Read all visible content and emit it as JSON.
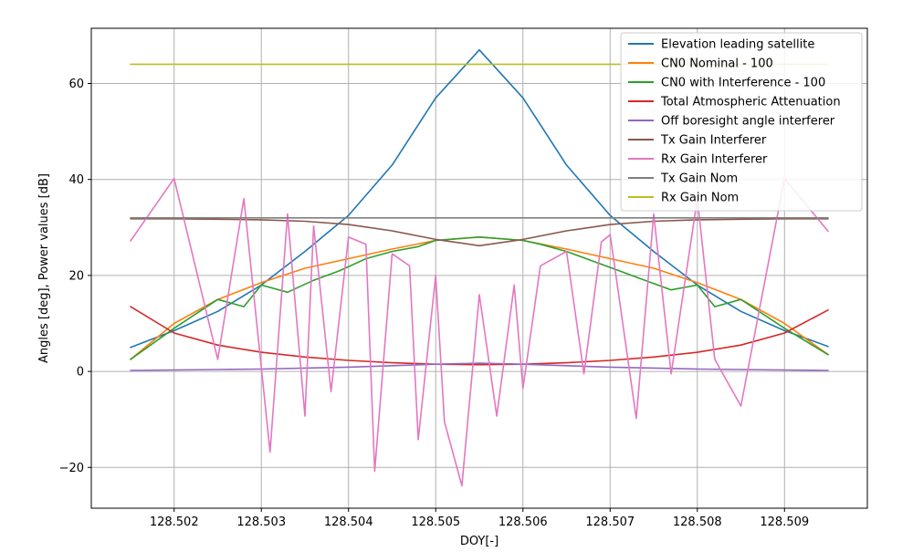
{
  "chart_data": {
    "type": "line",
    "xlabel": "DOY[-]",
    "ylabel": "Angles [deg], Power values [dB]",
    "xlim": [
      128.50105,
      128.50995
    ],
    "ylim": [
      -28.5,
      71.5
    ],
    "grid": true,
    "legend_position": "top-right",
    "x_ticks": [
      128.502,
      128.503,
      128.504,
      128.505,
      128.506,
      128.507,
      128.508,
      128.509
    ],
    "x_tick_labels": [
      "128.502",
      "128.503",
      "128.504",
      "128.505",
      "128.506",
      "128.507",
      "128.508",
      "128.509"
    ],
    "y_ticks": [
      -20,
      0,
      20,
      40,
      60
    ],
    "y_tick_labels": [
      "−20",
      "0",
      "20",
      "40",
      "60"
    ],
    "series": [
      {
        "name": "Elevation leading satellite",
        "color": "#1f77b4",
        "x": [
          128.5015,
          128.502,
          128.5025,
          128.503,
          128.5035,
          128.504,
          128.5045,
          128.505,
          128.5055,
          128.506,
          128.5065,
          128.507,
          128.5075,
          128.508,
          128.5085,
          128.509,
          128.5095
        ],
        "y": [
          5.0,
          8.5,
          12.5,
          18.0,
          25.0,
          32.5,
          43.0,
          57.0,
          67.0,
          57.0,
          43.0,
          32.5,
          25.0,
          18.0,
          12.5,
          8.5,
          5.2
        ]
      },
      {
        "name": "CN0 Nominal - 100",
        "color": "#ff7f0e",
        "x": [
          128.5015,
          128.502,
          128.5025,
          128.503,
          128.5035,
          128.504,
          128.5045,
          128.505,
          128.5055,
          128.506,
          128.5065,
          128.507,
          128.5075,
          128.508,
          128.5085,
          128.509,
          128.5095
        ],
        "y": [
          2.5,
          10.0,
          15.0,
          18.5,
          21.5,
          23.5,
          25.5,
          27.3,
          28.0,
          27.3,
          25.5,
          23.5,
          21.5,
          18.5,
          15.0,
          10.0,
          3.5
        ]
      },
      {
        "name": "CN0 with Interference - 100",
        "color": "#2ca02c",
        "x": [
          128.5015,
          128.502,
          128.5025,
          128.5028,
          128.503,
          128.5033,
          128.5036,
          128.5039,
          128.5042,
          128.5045,
          128.5048,
          128.505,
          128.5055,
          128.506,
          128.5062,
          128.5065,
          128.5068,
          128.5071,
          128.5074,
          128.5077,
          128.508,
          128.5082,
          128.5085,
          128.509,
          128.5095
        ],
        "y": [
          2.5,
          9.0,
          15.0,
          13.5,
          18.0,
          16.5,
          19.0,
          21.0,
          23.5,
          25.0,
          26.0,
          27.3,
          28.0,
          27.3,
          26.5,
          25.0,
          23.0,
          21.0,
          19.0,
          17.0,
          18.0,
          13.5,
          15.0,
          9.0,
          3.5
        ]
      },
      {
        "name": "Total Atmospheric Attenuation",
        "color": "#d62728",
        "x": [
          128.5015,
          128.502,
          128.5025,
          128.503,
          128.5035,
          128.504,
          128.5045,
          128.505,
          128.5055,
          128.506,
          128.5065,
          128.507,
          128.5075,
          128.508,
          128.5085,
          128.509,
          128.5095
        ],
        "y": [
          13.5,
          8.0,
          5.5,
          4.0,
          3.0,
          2.3,
          1.8,
          1.5,
          1.4,
          1.5,
          1.8,
          2.3,
          3.0,
          4.0,
          5.5,
          8.0,
          12.8
        ]
      },
      {
        "name": "Off boresight angle interferer",
        "color": "#9467bd",
        "x": [
          128.5015,
          128.502,
          128.5025,
          128.503,
          128.5035,
          128.504,
          128.5045,
          128.505,
          128.5055,
          128.506,
          128.5065,
          128.507,
          128.5075,
          128.508,
          128.5085,
          128.509,
          128.5095
        ],
        "y": [
          0.2,
          0.3,
          0.4,
          0.5,
          0.7,
          0.9,
          1.2,
          1.5,
          1.7,
          1.5,
          1.2,
          0.9,
          0.7,
          0.5,
          0.4,
          0.3,
          0.2
        ]
      },
      {
        "name": "Tx Gain Interferer",
        "color": "#8c564b",
        "x": [
          128.5015,
          128.502,
          128.5025,
          128.503,
          128.5035,
          128.504,
          128.5045,
          128.505,
          128.5055,
          128.506,
          128.5065,
          128.507,
          128.5075,
          128.508,
          128.5085,
          128.509,
          128.5095
        ],
        "y": [
          31.8,
          31.8,
          31.7,
          31.6,
          31.3,
          30.6,
          29.3,
          27.5,
          26.2,
          27.5,
          29.3,
          30.6,
          31.3,
          31.6,
          31.7,
          31.8,
          31.8
        ]
      },
      {
        "name": "Rx Gain Interferer",
        "color": "#e377c2",
        "x": [
          128.5015,
          128.502,
          128.5025,
          128.5028,
          128.5031,
          128.5033,
          128.5035,
          128.5036,
          128.5038,
          128.504,
          128.5042,
          128.5043,
          128.5045,
          128.5047,
          128.5048,
          128.505,
          128.5051,
          128.5053,
          128.5055,
          128.5057,
          128.5059,
          128.506,
          128.5062,
          128.5065,
          128.5067,
          128.5069,
          128.507,
          128.5073,
          128.5075,
          128.5077,
          128.508,
          128.5082,
          128.5085,
          128.509,
          128.5095
        ],
        "y": [
          27.2,
          40.2,
          2.5,
          36.0,
          -16.8,
          32.8,
          -9.3,
          30.3,
          -4.2,
          28.0,
          26.5,
          -20.8,
          24.5,
          22.0,
          -14.2,
          20.0,
          -10.5,
          -23.8,
          16.0,
          -9.3,
          18.0,
          -3.5,
          22.0,
          25.0,
          -0.5,
          27.0,
          28.5,
          -9.8,
          32.8,
          -0.5,
          36.0,
          2.5,
          -7.2,
          40.2,
          29.2
        ]
      },
      {
        "name": "Tx Gain Nom",
        "color": "#7f7f7f",
        "x": [
          128.5015,
          128.5095
        ],
        "y": [
          32.0,
          32.0
        ]
      },
      {
        "name": "Rx Gain Nom",
        "color": "#bcbd22",
        "x": [
          128.5015,
          128.5095
        ],
        "y": [
          64.0,
          64.0
        ]
      }
    ]
  }
}
